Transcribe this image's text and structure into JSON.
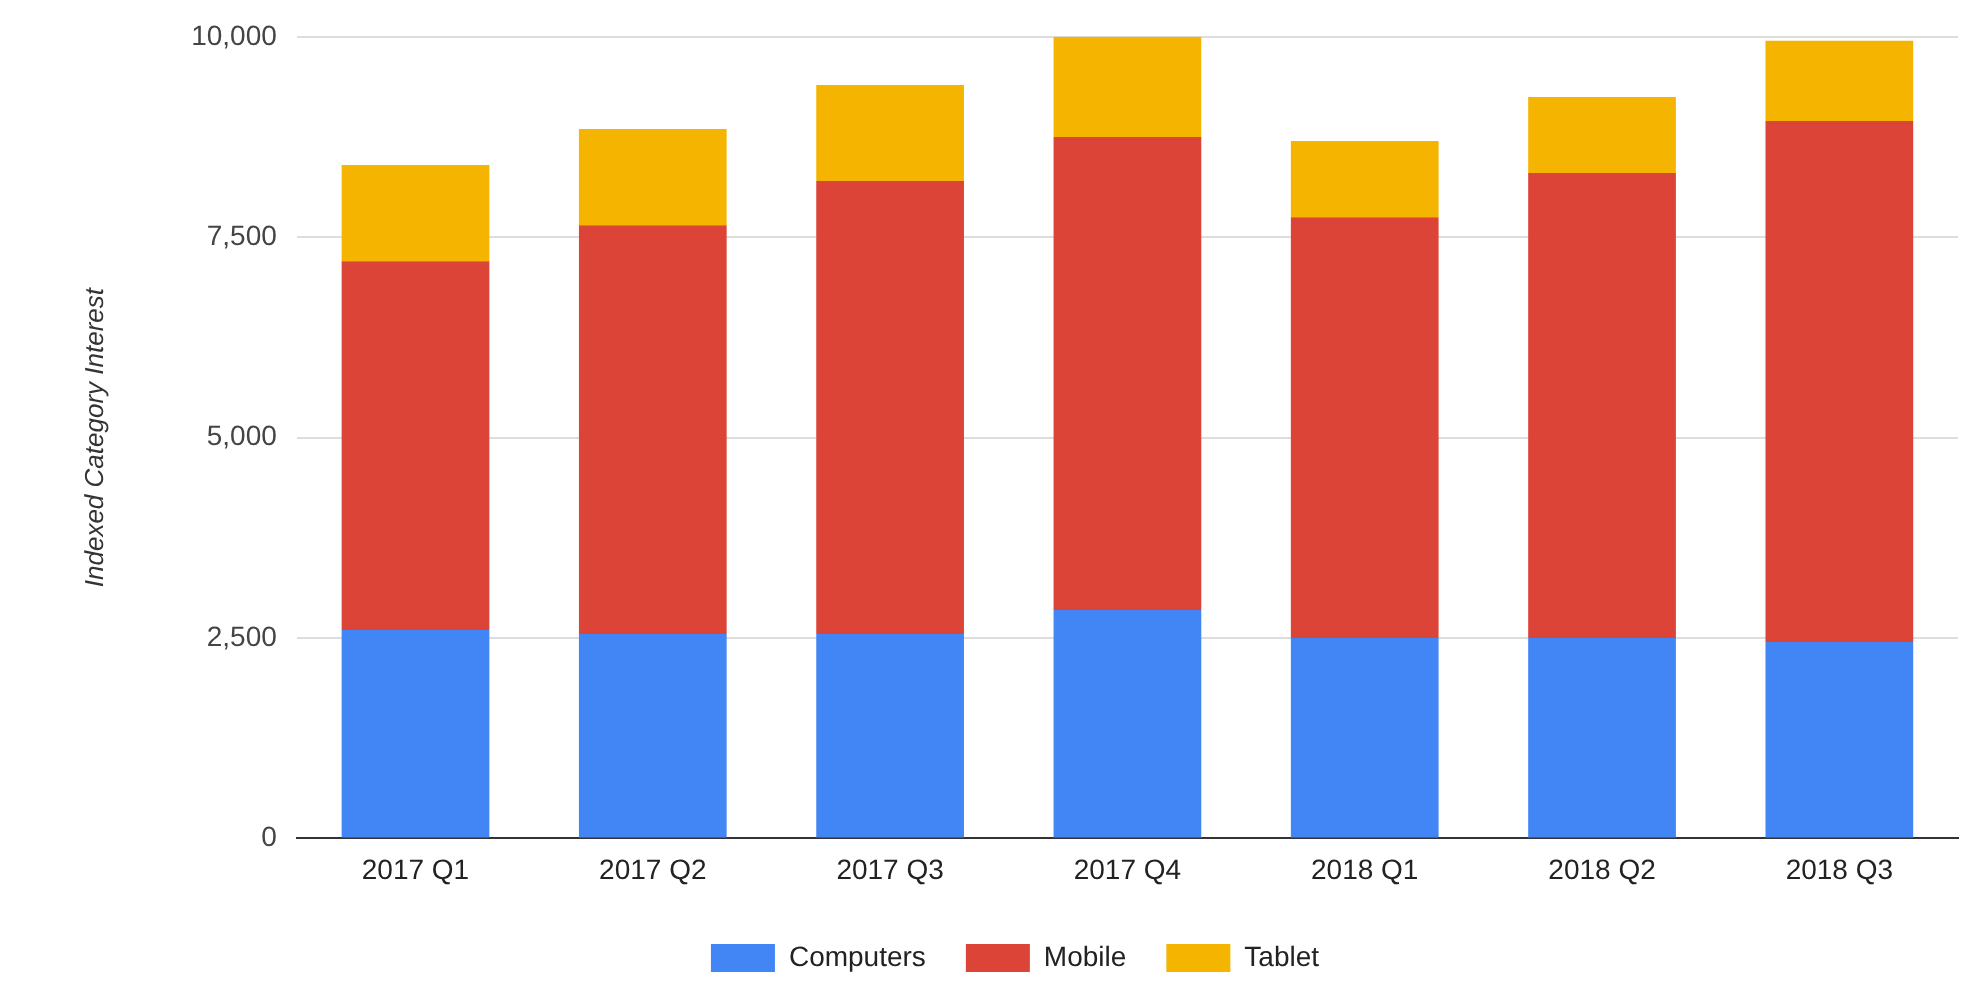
{
  "chart_data": {
    "type": "bar",
    "stacked": true,
    "ylabel": "Indexed Category Interest",
    "categories": [
      "2017 Q1",
      "2017 Q2",
      "2017 Q3",
      "2017 Q4",
      "2018 Q1",
      "2018 Q2",
      "2018 Q3"
    ],
    "series": [
      {
        "name": "Computers",
        "color": "#4285f4",
        "values": [
          2600,
          2550,
          2550,
          2850,
          2500,
          2500,
          2450
        ]
      },
      {
        "name": "Mobile",
        "color": "#db4437",
        "values": [
          4600,
          5100,
          5650,
          5900,
          5250,
          5800,
          6500
        ]
      },
      {
        "name": "Tablet",
        "color": "#f4b400",
        "values": [
          1200,
          1200,
          1200,
          1250,
          950,
          950,
          1000
        ]
      }
    ],
    "ylim": [
      0,
      10000
    ],
    "yticks": [
      {
        "value": 0,
        "label": "0"
      },
      {
        "value": 2500,
        "label": "2,500"
      },
      {
        "value": 5000,
        "label": "5,000"
      },
      {
        "value": 7500,
        "label": "7,500"
      },
      {
        "value": 10000,
        "label": "10,000"
      }
    ],
    "grid": "y",
    "legend": "bottom"
  }
}
